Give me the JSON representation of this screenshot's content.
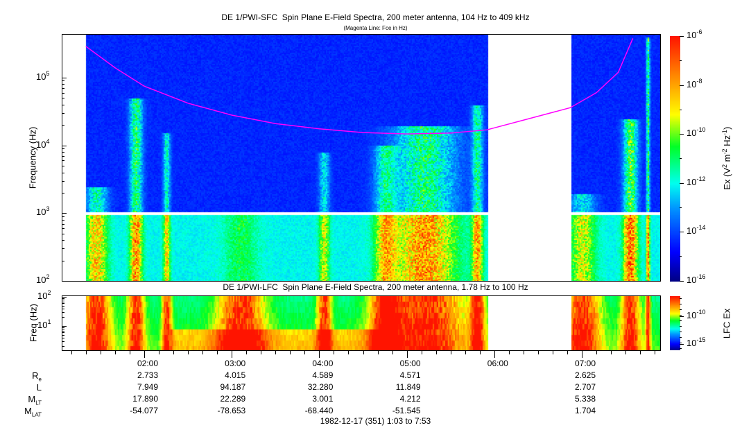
{
  "title": "DE 1/PWI-SFC  Spin Plane E-Field Spectra, 200 meter antenna, 104 Hz to 409 kHz",
  "subtitle": "(Magenta Line: Fce in Hz)",
  "lower_title": "DE 1/PWI-LFC  Spin Plane E-Field Spectra, 200 meter antenna, 1.78 Hz to 100 Hz",
  "footer": "1982-12-17 (351) 1:03 to 7:53",
  "colors": {
    "fce_line": "#ff00ff",
    "background": "#ffffff",
    "frame": "#000000"
  },
  "chart_data": [
    {
      "type": "heatmap",
      "name": "SFC",
      "ylabel": "Frequency (Hz)",
      "yscale": "log",
      "ylim": [
        100,
        409000
      ],
      "yticks": [
        {
          "base": "10",
          "exp": "2",
          "value": 100
        },
        {
          "base": "10",
          "exp": "3",
          "value": 1000
        },
        {
          "base": "10",
          "exp": "4",
          "value": 10000
        },
        {
          "base": "10",
          "exp": "5",
          "value": 100000
        }
      ],
      "xlim": [
        "01:03",
        "07:53"
      ],
      "data_gap": [
        "05:55",
        "06:52"
      ],
      "colorbar": {
        "label_parts": {
          "a": "Ex (V",
          "b": "2",
          "c": " m",
          "d": "-2",
          "e": " Hz",
          "f": "-1",
          "g": ")"
        },
        "scale": "log",
        "range": [
          1e-16,
          1e-06
        ],
        "ticks": [
          {
            "base": "10",
            "exp": "-6"
          },
          {
            "base": "10",
            "exp": "-8"
          },
          {
            "base": "10",
            "exp": "-10"
          },
          {
            "base": "10",
            "exp": "-12"
          },
          {
            "base": "10",
            "exp": "-14"
          },
          {
            "base": "10",
            "exp": "-16"
          }
        ]
      },
      "fce_line": {
        "label": "Fce",
        "points": [
          {
            "t": "01:20",
            "hz": 290000
          },
          {
            "t": "01:40",
            "hz": 140000
          },
          {
            "t": "02:00",
            "hz": 75000
          },
          {
            "t": "02:30",
            "hz": 42000
          },
          {
            "t": "03:00",
            "hz": 28000
          },
          {
            "t": "03:30",
            "hz": 21000
          },
          {
            "t": "04:00",
            "hz": 17600
          },
          {
            "t": "04:30",
            "hz": 15500
          },
          {
            "t": "05:00",
            "hz": 14800
          },
          {
            "t": "05:30",
            "hz": 15200
          },
          {
            "t": "05:55",
            "hz": 17000
          },
          {
            "t": "06:52",
            "hz": 36000
          },
          {
            "t": "07:10",
            "hz": 60000
          },
          {
            "t": "07:25",
            "hz": 120000
          },
          {
            "t": "07:35",
            "hz": 380000
          }
        ]
      }
    },
    {
      "type": "heatmap",
      "name": "LFC",
      "ylabel": "Freq (Hz)",
      "yscale": "log",
      "ylim": [
        1.78,
        100
      ],
      "yticks": [
        {
          "base": "10",
          "exp": "1",
          "value": 10
        },
        {
          "base": "10",
          "exp": "2",
          "value": 100
        }
      ],
      "colorbar": {
        "label": "LFC Ex",
        "ticks": [
          {
            "base": "10",
            "exp": "-10"
          },
          {
            "base": "10",
            "exp": "-15"
          }
        ]
      }
    }
  ],
  "xaxis": {
    "ticks": [
      "02:00",
      "03:00",
      "04:00",
      "05:00",
      "06:00",
      "07:00"
    ]
  },
  "ephemeris": {
    "rows": [
      {
        "label": "R",
        "sub": "e",
        "values": [
          "2.733",
          "4.015",
          "4.589",
          "4.571",
          "",
          "2.625"
        ]
      },
      {
        "label": "L",
        "sub": "",
        "values": [
          "7.949",
          "94.187",
          "32.280",
          "11.849",
          "",
          "2.707"
        ]
      },
      {
        "label": "M",
        "sub": "LT",
        "values": [
          "17.890",
          "22.289",
          "3.001",
          "4.212",
          "",
          "5.338"
        ]
      },
      {
        "label": "M",
        "sub": "LAT",
        "values": [
          "-54.077",
          "-78.653",
          "-68.440",
          "-51.545",
          "",
          "1.704"
        ]
      }
    ]
  }
}
